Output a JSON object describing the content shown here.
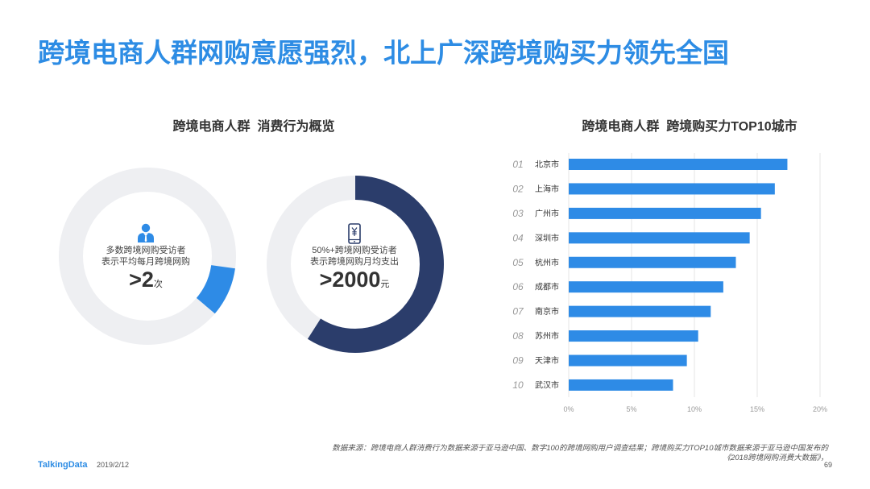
{
  "title": "跨境电商人群网购意愿强烈，北上广深跨境购买力领先全国",
  "left_panel": {
    "heading": "跨境电商人群  消费行为概览"
  },
  "colors": {
    "title": "#2D8CE4",
    "bar": "#2E8BE6",
    "donut_track": "#EEEFF2",
    "donut_highlight_1": "#2E8BE6",
    "donut_highlight_2": "#2B3D6B",
    "person_icon": "#2E8BE6",
    "phone_icon": "#2B3D6B",
    "grid": "#E6E6E6"
  },
  "chart_data": [
    {
      "type": "pie",
      "donut": true,
      "fill_fraction": 0.09,
      "center_icon": "person-icon",
      "text_lines": [
        "多数跨境网购受访者",
        "表示平均每月跨境网购"
      ],
      "value": ">2",
      "unit": "次"
    },
    {
      "type": "pie",
      "donut": true,
      "fill_fraction": 0.59,
      "center_icon": "phone-yuan-icon",
      "text_lines": [
        "50%+跨境网购受访者",
        "表示跨境网购月均支出"
      ],
      "value": ">2000",
      "unit": "元"
    },
    {
      "type": "bar",
      "orientation": "horizontal",
      "title": "跨境电商人群  跨境购买力TOP10城市",
      "ranks": [
        "01",
        "02",
        "03",
        "04",
        "05",
        "06",
        "07",
        "08",
        "09",
        "10"
      ],
      "categories": [
        "北京市",
        "上海市",
        "广州市",
        "深圳市",
        "杭州市",
        "成都市",
        "南京市",
        "苏州市",
        "天津市",
        "武汉市"
      ],
      "values": [
        17.4,
        16.4,
        15.3,
        14.4,
        13.3,
        12.3,
        11.3,
        10.3,
        9.4,
        8.3
      ],
      "xlim": [
        0,
        20
      ],
      "xticks": [
        0,
        5,
        10,
        15,
        20
      ],
      "xtick_labels": [
        "0%",
        "5%",
        "10%",
        "15%",
        "20%"
      ],
      "grid": true
    }
  ],
  "footer": {
    "source_lines": [
      "数据来源：跨境电商人群消费行为数据来源于亚马逊中国、数字100的跨境网购用户调查结果；跨境购买力TOP10城市数据来源于亚马逊中国发布的",
      "《2018跨境网购消费大数据》，"
    ],
    "brand": "TalkingData",
    "date": "2019/2/12",
    "page": "69"
  }
}
